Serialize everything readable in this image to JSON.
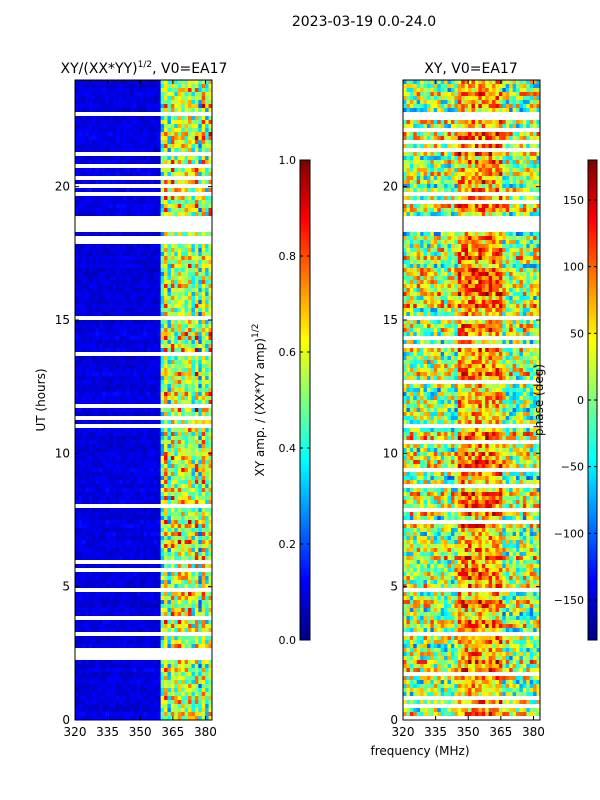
{
  "figure_title": "2023-03-19 0.0-24.0",
  "colors": {
    "jet": [
      "#00007f",
      "#0000ff",
      "#007fff",
      "#00ffff",
      "#7fff7f",
      "#ffff00",
      "#ff7f00",
      "#ff0000",
      "#7f0000"
    ],
    "gap": "#ffffff",
    "axis": "#000000"
  },
  "chart_data": [
    {
      "type": "heatmap",
      "title_main": "XY/(XX*YY)",
      "title_sup": "1/2",
      "title_rest": ", V0=EA17",
      "xlabel": "",
      "ylabel": "UT (hours)",
      "xlim": [
        320,
        383
      ],
      "ylim": [
        0,
        24
      ],
      "xticks": [
        "320",
        "335",
        "350",
        "365",
        "380"
      ],
      "xtick_values": [
        320,
        335,
        350,
        365,
        380
      ],
      "yticks": [
        "0",
        "5",
        "10",
        "15",
        "20"
      ],
      "ytick_values": [
        0,
        5,
        10,
        15,
        20
      ],
      "colorbar": {
        "label_main": "XY amp. / (XX*YY amp)",
        "label_sup": "1/2",
        "range": [
          0.0,
          1.0
        ],
        "ticks": [
          "0.0",
          "0.2",
          "0.4",
          "0.6",
          "0.8",
          "1.0"
        ],
        "tick_values": [
          0.0,
          0.2,
          0.4,
          0.6,
          0.8,
          1.0
        ]
      },
      "flagged_hour_ranges": [
        [
          18.3,
          18.95
        ],
        [
          15.05,
          15.2
        ],
        [
          3.55,
          3.65
        ],
        [
          2.65,
          2.75
        ],
        [
          5.05,
          5.15
        ],
        [
          4.8,
          4.9
        ]
      ],
      "description_values": {
        "low_band_mhz": [
          320,
          360
        ],
        "low_band_level": 0.05,
        "high_band_mhz": [
          360,
          383
        ],
        "high_band_level_range": [
          0.2,
          1.0
        ]
      }
    },
    {
      "type": "heatmap",
      "title_main": "XY, V0=EA17",
      "xlabel": "frequency (MHz)",
      "ylabel": "",
      "xlim": [
        320,
        383
      ],
      "ylim": [
        0,
        24
      ],
      "xticks": [
        "320",
        "335",
        "350",
        "365",
        "380"
      ],
      "xtick_values": [
        320,
        335,
        350,
        365,
        380
      ],
      "yticks": [
        "0",
        "5",
        "10",
        "15",
        "20"
      ],
      "ytick_values": [
        0,
        5,
        10,
        15,
        20
      ],
      "colorbar": {
        "label_main": "phase (deg)",
        "range": [
          -180,
          180
        ],
        "ticks": [
          "−150",
          "−100",
          "−50",
          "0",
          "50",
          "100",
          "150"
        ],
        "tick_values": [
          -150,
          -100,
          -50,
          0,
          50,
          100,
          150
        ]
      },
      "flagged_hour_ranges": [
        [
          18.3,
          18.95
        ],
        [
          15.05,
          15.2
        ],
        [
          3.55,
          3.65
        ],
        [
          2.65,
          2.75
        ],
        [
          5.05,
          5.15
        ],
        [
          4.8,
          4.9
        ]
      ],
      "description_values": {
        "phase_range_deg": [
          -180,
          180
        ],
        "dominant_high_phase_band_mhz": [
          345,
          365
        ]
      }
    }
  ]
}
